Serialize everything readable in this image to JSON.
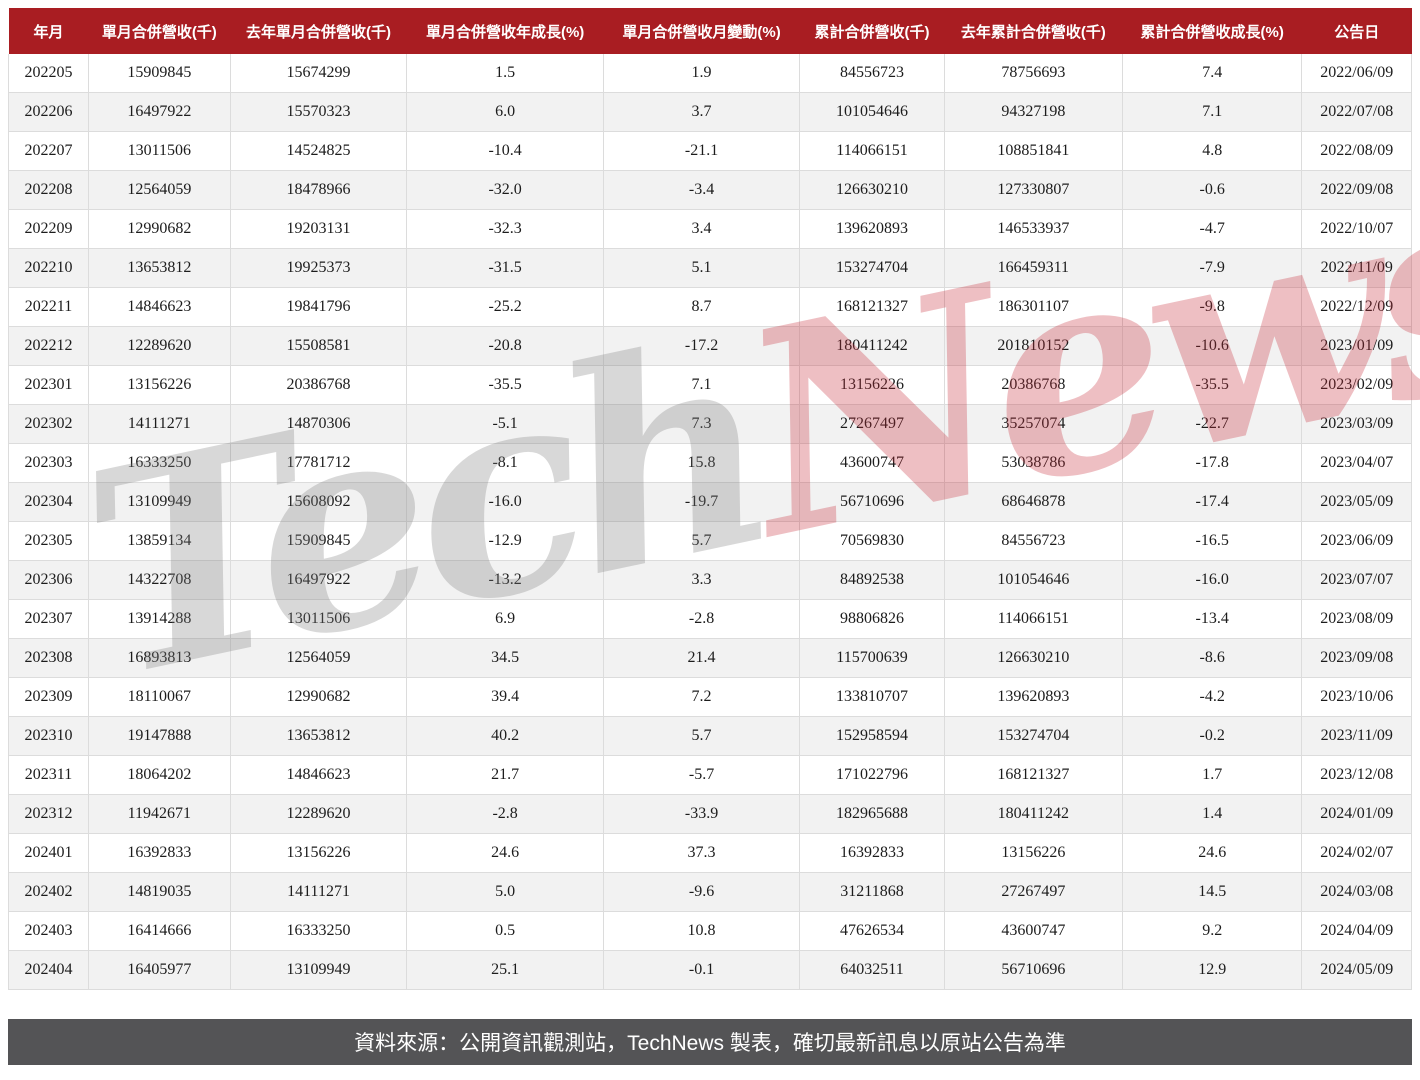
{
  "chart_data": {
    "type": "table",
    "columns": [
      "年月",
      "單月合併營收(千)",
      "去年單月合併營收(千)",
      "單月合併營收年成長(%)",
      "單月合併營收月變動(%)",
      "累計合併營收(千)",
      "去年累計合併營收(千)",
      "累計合併營收成長(%)",
      "公告日"
    ],
    "rows": [
      [
        "202205",
        "15909845",
        "15674299",
        "1.5",
        "1.9",
        "84556723",
        "78756693",
        "7.4",
        "2022/06/09"
      ],
      [
        "202206",
        "16497922",
        "15570323",
        "6.0",
        "3.7",
        "101054646",
        "94327198",
        "7.1",
        "2022/07/08"
      ],
      [
        "202207",
        "13011506",
        "14524825",
        "-10.4",
        "-21.1",
        "114066151",
        "108851841",
        "4.8",
        "2022/08/09"
      ],
      [
        "202208",
        "12564059",
        "18478966",
        "-32.0",
        "-3.4",
        "126630210",
        "127330807",
        "-0.6",
        "2022/09/08"
      ],
      [
        "202209",
        "12990682",
        "19203131",
        "-32.3",
        "3.4",
        "139620893",
        "146533937",
        "-4.7",
        "2022/10/07"
      ],
      [
        "202210",
        "13653812",
        "19925373",
        "-31.5",
        "5.1",
        "153274704",
        "166459311",
        "-7.9",
        "2022/11/09"
      ],
      [
        "202211",
        "14846623",
        "19841796",
        "-25.2",
        "8.7",
        "168121327",
        "186301107",
        "-9.8",
        "2022/12/09"
      ],
      [
        "202212",
        "12289620",
        "15508581",
        "-20.8",
        "-17.2",
        "180411242",
        "201810152",
        "-10.6",
        "2023/01/09"
      ],
      [
        "202301",
        "13156226",
        "20386768",
        "-35.5",
        "7.1",
        "13156226",
        "20386768",
        "-35.5",
        "2023/02/09"
      ],
      [
        "202302",
        "14111271",
        "14870306",
        "-5.1",
        "7.3",
        "27267497",
        "35257074",
        "-22.7",
        "2023/03/09"
      ],
      [
        "202303",
        "16333250",
        "17781712",
        "-8.1",
        "15.8",
        "43600747",
        "53038786",
        "-17.8",
        "2023/04/07"
      ],
      [
        "202304",
        "13109949",
        "15608092",
        "-16.0",
        "-19.7",
        "56710696",
        "68646878",
        "-17.4",
        "2023/05/09"
      ],
      [
        "202305",
        "13859134",
        "15909845",
        "-12.9",
        "5.7",
        "70569830",
        "84556723",
        "-16.5",
        "2023/06/09"
      ],
      [
        "202306",
        "14322708",
        "16497922",
        "-13.2",
        "3.3",
        "84892538",
        "101054646",
        "-16.0",
        "2023/07/07"
      ],
      [
        "202307",
        "13914288",
        "13011506",
        "6.9",
        "-2.8",
        "98806826",
        "114066151",
        "-13.4",
        "2023/08/09"
      ],
      [
        "202308",
        "16893813",
        "12564059",
        "34.5",
        "21.4",
        "115700639",
        "126630210",
        "-8.6",
        "2023/09/08"
      ],
      [
        "202309",
        "18110067",
        "12990682",
        "39.4",
        "7.2",
        "133810707",
        "139620893",
        "-4.2",
        "2023/10/06"
      ],
      [
        "202310",
        "19147888",
        "13653812",
        "40.2",
        "5.7",
        "152958594",
        "153274704",
        "-0.2",
        "2023/11/09"
      ],
      [
        "202311",
        "18064202",
        "14846623",
        "21.7",
        "-5.7",
        "171022796",
        "168121327",
        "1.7",
        "2023/12/08"
      ],
      [
        "202312",
        "11942671",
        "12289620",
        "-2.8",
        "-33.9",
        "182965688",
        "180411242",
        "1.4",
        "2024/01/09"
      ],
      [
        "202401",
        "16392833",
        "13156226",
        "24.6",
        "37.3",
        "16392833",
        "13156226",
        "24.6",
        "2024/02/07"
      ],
      [
        "202402",
        "14819035",
        "14111271",
        "5.0",
        "-9.6",
        "31211868",
        "27267497",
        "14.5",
        "2024/03/08"
      ],
      [
        "202403",
        "16414666",
        "16333250",
        "0.5",
        "10.8",
        "47626534",
        "43600747",
        "9.2",
        "2024/04/09"
      ],
      [
        "202404",
        "16405977",
        "13109949",
        "25.1",
        "-0.1",
        "64032511",
        "56710696",
        "12.9",
        "2024/05/09"
      ]
    ]
  },
  "watermark": {
    "tech": "Tech",
    "news": "News"
  },
  "footer": {
    "text": "資料來源：公開資訊觀測站，TechNews 製表，確切最新訊息以原站公告為準"
  },
  "colors": {
    "header_bg": "#a91d22",
    "footer_bg": "#545456",
    "row_stripe": "#f2f2f2",
    "border": "#dcdcdc",
    "watermark_red": "#c62c38",
    "watermark_gray": "#7d7d7d"
  }
}
